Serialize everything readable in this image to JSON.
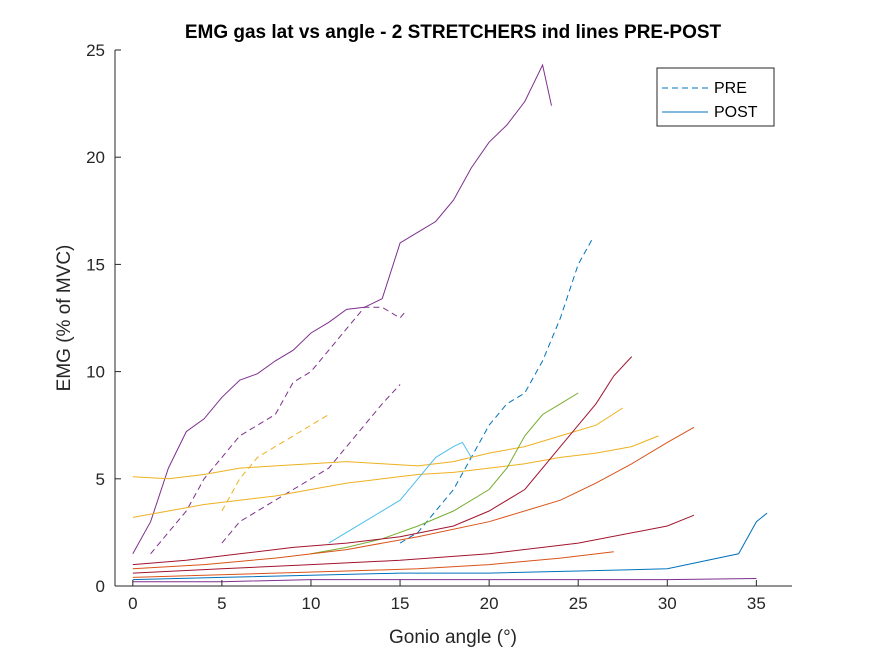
{
  "chart_data": {
    "type": "line",
    "title": "EMG gas lat vs angle - 2 STRETCHERS ind lines PRE-POST",
    "xlabel": "Gonio angle (°)",
    "ylabel": "EMG (% of MVC)",
    "xlim": [
      -1,
      37
    ],
    "ylim": [
      0,
      25
    ],
    "xticks": [
      0,
      5,
      10,
      15,
      20,
      25,
      30,
      35
    ],
    "yticks": [
      0,
      5,
      10,
      15,
      20,
      25
    ],
    "grid": false,
    "legend": {
      "position": "top-right",
      "entries": [
        {
          "label": "PRE",
          "style": "dashed",
          "color": "#0072BD"
        },
        {
          "label": "POST",
          "style": "solid",
          "color": "#0072BD"
        }
      ]
    },
    "series": [
      {
        "style": "solid",
        "color": "#7E2F8E",
        "x": [
          0,
          1,
          2,
          3,
          4,
          5,
          6,
          7,
          8,
          9,
          10,
          11,
          12,
          13,
          14,
          15,
          16,
          17,
          18,
          19,
          20,
          21,
          22,
          23,
          23.5
        ],
        "y": [
          1.5,
          3.0,
          5.5,
          7.2,
          7.8,
          8.8,
          9.6,
          9.9,
          10.5,
          11.0,
          11.8,
          12.3,
          12.9,
          13.0,
          13.4,
          16.0,
          16.5,
          17.0,
          18.0,
          19.5,
          20.7,
          21.5,
          22.6,
          24.3,
          22.4
        ]
      },
      {
        "style": "dashed",
        "color": "#7E2F8E",
        "x": [
          1,
          2,
          3,
          4,
          5,
          6,
          7,
          8,
          9,
          10,
          11,
          12,
          13,
          14,
          15,
          15.3
        ],
        "y": [
          1.5,
          2.5,
          3.5,
          5.0,
          6.0,
          7.0,
          7.5,
          8.0,
          9.5,
          10.0,
          11.0,
          12.0,
          13.0,
          13.0,
          12.5,
          12.8
        ]
      },
      {
        "style": "dashed",
        "color": "#7E2F8E",
        "x": [
          5,
          6,
          7,
          8,
          9,
          10,
          11,
          12,
          13,
          14,
          15
        ],
        "y": [
          2.0,
          3.0,
          3.5,
          4.0,
          4.5,
          5.0,
          5.5,
          6.5,
          7.5,
          8.5,
          9.4
        ]
      },
      {
        "style": "dashed",
        "color": "#0072BD",
        "x": [
          15,
          16,
          17,
          18,
          19,
          20,
          21,
          22,
          23,
          24,
          25,
          25.8
        ],
        "y": [
          2.0,
          2.5,
          3.5,
          4.5,
          6.0,
          7.5,
          8.5,
          9.0,
          10.5,
          12.5,
          15.0,
          16.2
        ]
      },
      {
        "style": "dashed",
        "color": "#EDB120",
        "x": [
          5,
          6,
          7,
          8,
          9,
          10,
          11
        ],
        "y": [
          3.5,
          5.0,
          6.0,
          6.5,
          7.0,
          7.5,
          8.0
        ]
      },
      {
        "style": "solid",
        "color": "#EDB120",
        "x": [
          0,
          2,
          4,
          6,
          8,
          10,
          12,
          14,
          16,
          18,
          20,
          22,
          24,
          26,
          27.5
        ],
        "y": [
          5.1,
          5.0,
          5.2,
          5.5,
          5.6,
          5.7,
          5.8,
          5.7,
          5.6,
          5.8,
          6.2,
          6.5,
          7.0,
          7.5,
          8.3
        ]
      },
      {
        "style": "solid",
        "color": "#EDB120",
        "x": [
          0,
          2,
          4,
          6,
          8,
          10,
          12,
          14,
          16,
          18,
          20,
          22,
          24,
          26,
          28,
          29.5
        ],
        "y": [
          3.2,
          3.5,
          3.8,
          4.0,
          4.2,
          4.5,
          4.8,
          5.0,
          5.2,
          5.3,
          5.5,
          5.7,
          6.0,
          6.2,
          6.5,
          7.0
        ]
      },
      {
        "style": "solid",
        "color": "#77AC30",
        "x": [
          10,
          12,
          14,
          16,
          18,
          20,
          21,
          22,
          23,
          24,
          25
        ],
        "y": [
          1.5,
          1.8,
          2.2,
          2.8,
          3.5,
          4.5,
          5.5,
          7.0,
          8.0,
          8.5,
          9.0
        ]
      },
      {
        "style": "solid",
        "color": "#A2142F",
        "x": [
          0,
          3,
          6,
          9,
          12,
          15,
          18,
          20,
          22,
          24,
          26,
          27,
          28
        ],
        "y": [
          1.0,
          1.2,
          1.5,
          1.8,
          2.0,
          2.3,
          2.8,
          3.5,
          4.5,
          6.5,
          8.5,
          9.8,
          10.7
        ]
      },
      {
        "style": "solid",
        "color": "#D95319",
        "x": [
          0,
          4,
          8,
          12,
          16,
          20,
          24,
          26,
          28,
          30,
          31.5
        ],
        "y": [
          0.8,
          1.0,
          1.3,
          1.7,
          2.3,
          3.0,
          4.0,
          4.8,
          5.7,
          6.7,
          7.4
        ]
      },
      {
        "style": "solid",
        "color": "#4DBEEE",
        "x": [
          11,
          13,
          15,
          16,
          17,
          18,
          18.5,
          19
        ],
        "y": [
          2.0,
          3.0,
          4.0,
          5.0,
          6.0,
          6.5,
          6.7,
          6.0
        ]
      },
      {
        "style": "solid",
        "color": "#A2142F",
        "x": [
          0,
          5,
          10,
          15,
          20,
          25,
          30,
          31.5
        ],
        "y": [
          0.6,
          0.8,
          1.0,
          1.2,
          1.5,
          2.0,
          2.8,
          3.3
        ]
      },
      {
        "style": "solid",
        "color": "#0072BD",
        "x": [
          0,
          5,
          10,
          15,
          20,
          25,
          30,
          34,
          35,
          35.6
        ],
        "y": [
          0.3,
          0.4,
          0.5,
          0.6,
          0.6,
          0.7,
          0.8,
          1.5,
          3.0,
          3.4
        ]
      },
      {
        "style": "solid",
        "color": "#7E2F8E",
        "x": [
          0,
          5,
          10,
          15,
          20,
          25,
          30,
          35
        ],
        "y": [
          0.2,
          0.2,
          0.3,
          0.3,
          0.3,
          0.3,
          0.3,
          0.35
        ]
      },
      {
        "style": "solid",
        "color": "#D95319",
        "x": [
          0,
          4,
          8,
          12,
          16,
          20,
          24,
          27
        ],
        "y": [
          0.4,
          0.5,
          0.6,
          0.7,
          0.8,
          1.0,
          1.3,
          1.6
        ]
      }
    ]
  }
}
